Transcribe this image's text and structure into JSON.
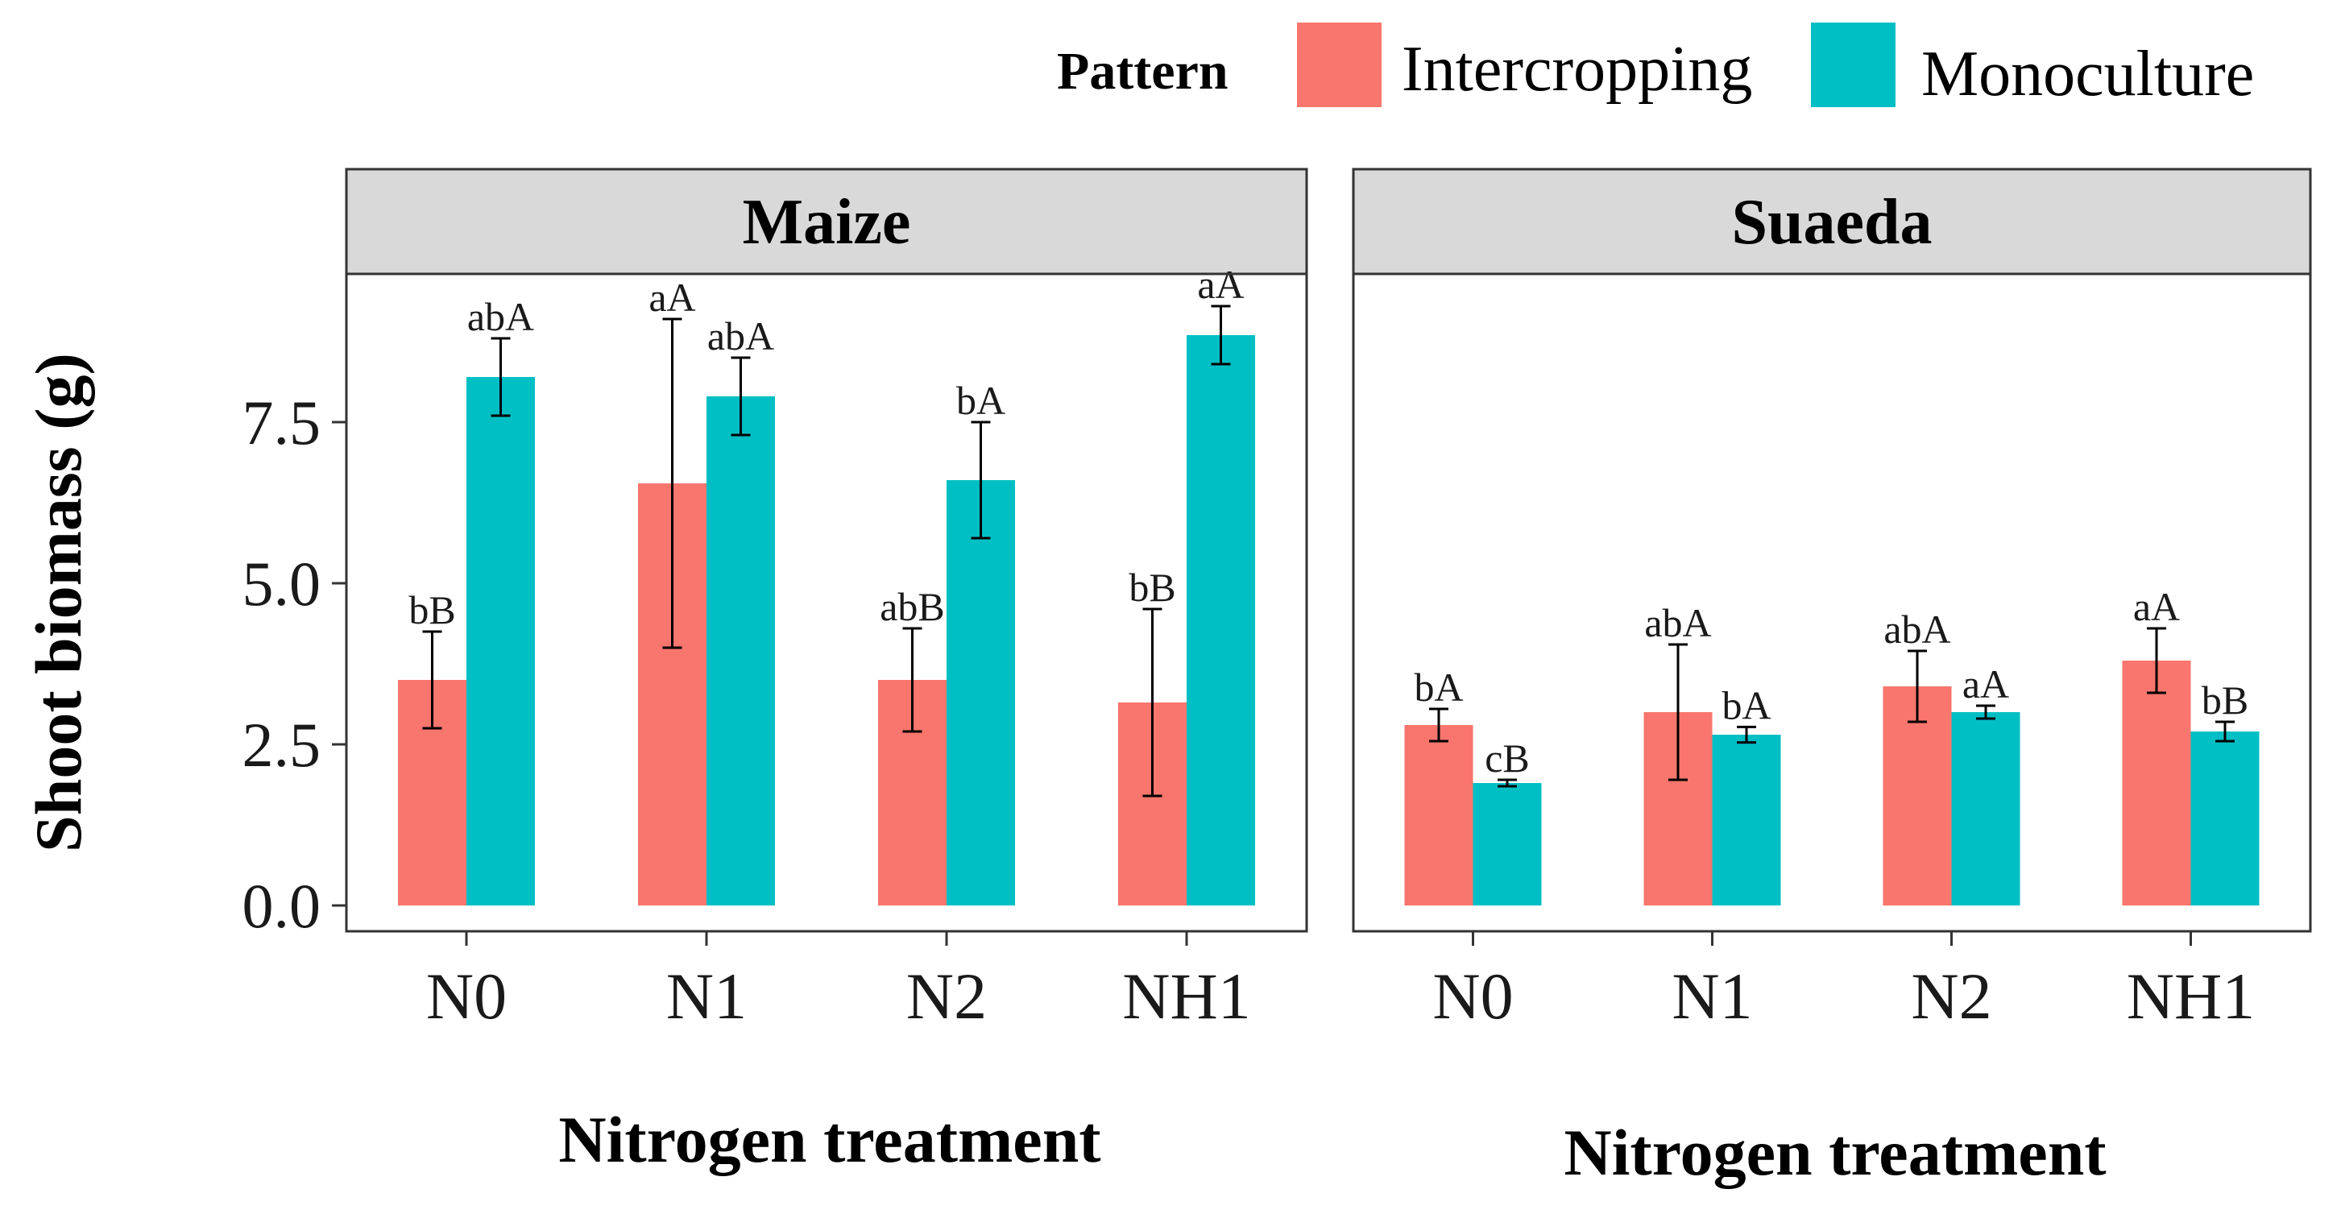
{
  "legend": {
    "title": "Pattern",
    "entries": [
      {
        "label": "Intercropping",
        "color": "#F8766D"
      },
      {
        "label": "Monoculture",
        "color": "#00BFC4"
      }
    ]
  },
  "chart_data": {
    "type": "bar",
    "ylabel": "Shoot biomass (g)",
    "xlabel": "Nitrogen treatment",
    "ylim": [
      -0.4,
      9.8
    ],
    "yticks": [
      "0.0",
      "2.5",
      "5.0",
      "7.5"
    ],
    "ytick_values": [
      0.0,
      2.5,
      5.0,
      7.5
    ],
    "categories": [
      "N0",
      "N1",
      "N2",
      "NH1"
    ],
    "panels": [
      {
        "title": "Maize",
        "series": [
          {
            "name": "Intercropping",
            "values": [
              3.5,
              6.55,
              3.5,
              3.15
            ],
            "errors": [
              0.75,
              2.55,
              0.8,
              1.45
            ],
            "labels": [
              "bB",
              "aA",
              "abB",
              "bB"
            ]
          },
          {
            "name": "Monoculture",
            "values": [
              8.2,
              7.9,
              6.6,
              8.85
            ],
            "errors": [
              0.6,
              0.6,
              0.9,
              0.45
            ],
            "labels": [
              "abA",
              "abA",
              "bA",
              "aA"
            ]
          }
        ]
      },
      {
        "title": "Suaeda",
        "series": [
          {
            "name": "Intercropping",
            "values": [
              2.8,
              3.0,
              3.4,
              3.8
            ],
            "errors": [
              0.25,
              1.05,
              0.55,
              0.5
            ],
            "labels": [
              "bA",
              "abA",
              "abA",
              "aA"
            ]
          },
          {
            "name": "Monoculture",
            "values": [
              1.9,
              2.65,
              3.0,
              2.7
            ],
            "errors": [
              0.05,
              0.12,
              0.1,
              0.15
            ],
            "labels": [
              "cB",
              "bA",
              "aA",
              "bB"
            ]
          }
        ]
      }
    ]
  }
}
